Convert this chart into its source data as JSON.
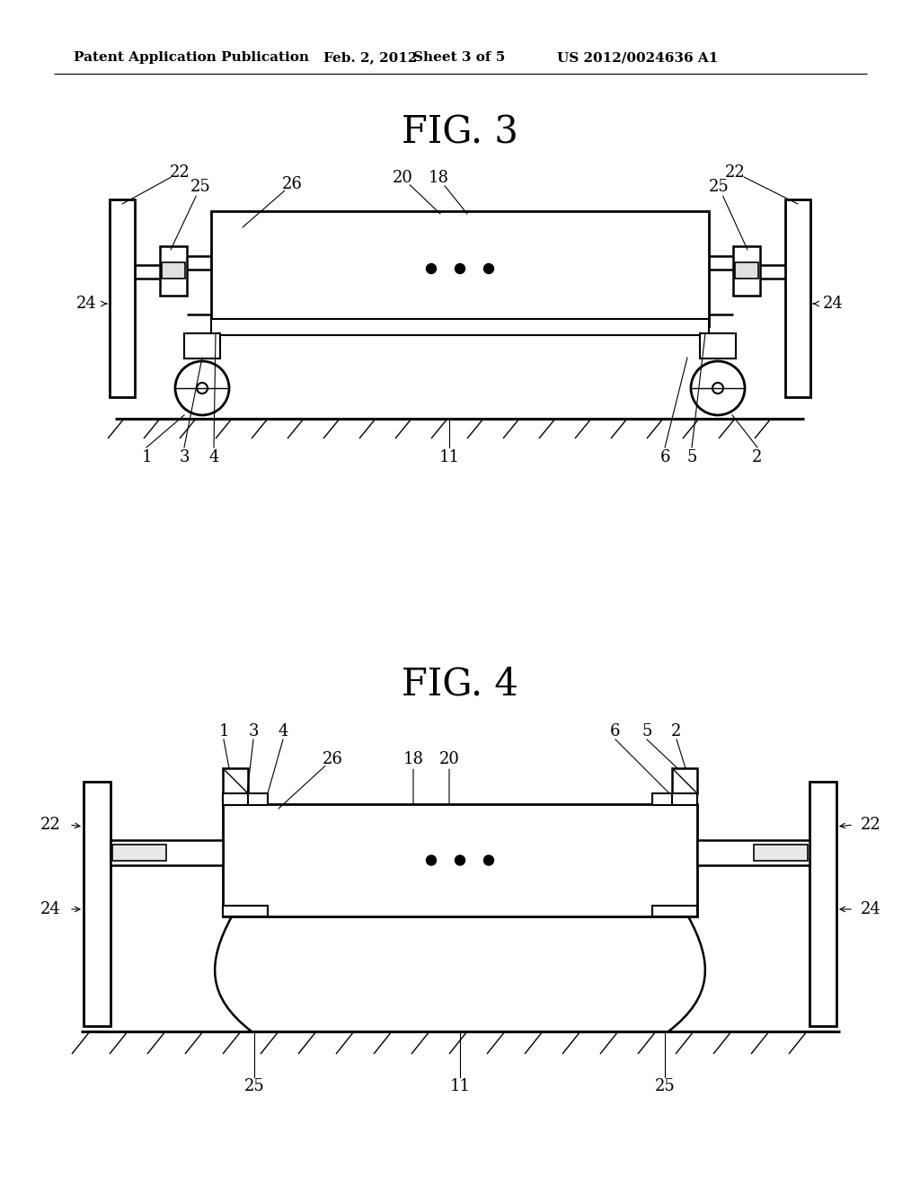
{
  "background_color": "#ffffff",
  "header_text": "Patent Application Publication",
  "header_date": "Feb. 2, 2012",
  "header_sheet": "Sheet 3 of 5",
  "header_patent": "US 2012/0024636 A1",
  "fig3_title": "FIG. 3",
  "fig4_title": "FIG. 4",
  "line_color": "#000000",
  "line_width": 1.8,
  "font_size_header": 11,
  "font_size_fig": 30,
  "font_size_label": 13
}
